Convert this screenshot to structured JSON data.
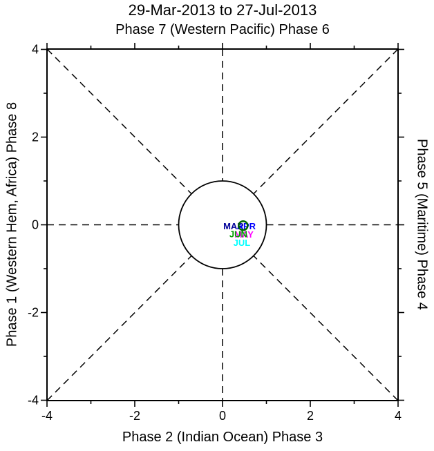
{
  "chart_data": {
    "type": "scatter",
    "subtype": "mjo_phase_space_diagram",
    "title": "29-Mar-2013 to 27-Jul-2013",
    "top_label": "Phase 7 (Western Pacific) Phase 6",
    "bottom_label": "Phase 2 (Indian Ocean) Phase 3",
    "left_label": "Phase 1 (Western Hem, Africa) Phase 8",
    "right_label": "Phase 5 (Maritime) Phase 4",
    "xlim": [
      -4,
      4
    ],
    "ylim": [
      -4,
      4
    ],
    "major_ticks": [
      -4,
      -2,
      0,
      2,
      4
    ],
    "minor_ticks": [
      -3,
      -1,
      1,
      3
    ],
    "unit_circle_radius": 1,
    "guide_lines": "dashed horizontal, vertical and diagonal phase-separator lines ending at the unit circle",
    "months": [
      {
        "label": "MAR",
        "color": "#000099",
        "x": 0.25,
        "y": -0.1
      },
      {
        "label": "APR",
        "color": "#0000ff",
        "x": 0.54,
        "y": -0.1
      },
      {
        "label": "MAY",
        "color": "#ff00ff",
        "x": 0.49,
        "y": -0.29
      },
      {
        "label": "JUN",
        "color": "#00a000",
        "x": 0.36,
        "y": -0.28
      },
      {
        "label": "JUL",
        "color": "#00ffff",
        "x": 0.44,
        "y": -0.48
      }
    ],
    "trajectory_marker": {
      "shape": "open-circle",
      "color": "#006400",
      "x": 0.47,
      "y": -0.02
    }
  }
}
